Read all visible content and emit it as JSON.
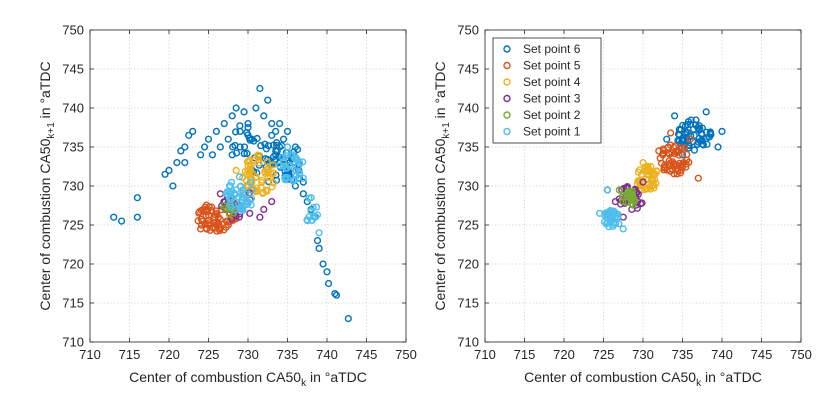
{
  "chart_data": [
    {
      "type": "scatter",
      "title": "",
      "xlabel": "Center of combustion CA50",
      "xlabel_sub": "k",
      "xlabel_suffix": " in °aTDC",
      "ylabel": "Center of combustion CA50",
      "ylabel_sub": "k+1",
      "ylabel_suffix": " in °aTDC",
      "xlim": [
        710,
        750
      ],
      "ylim": [
        710,
        750
      ],
      "xticks": [
        710,
        715,
        720,
        725,
        730,
        735,
        740,
        745,
        750
      ],
      "yticks": [
        710,
        715,
        720,
        725,
        730,
        735,
        740,
        745,
        750
      ],
      "grid": true,
      "legend": false,
      "series": [
        {
          "name": "Set point 6",
          "color": "#0072BD",
          "points": [
            [
              713,
              726
            ],
            [
              714,
              725.5
            ],
            [
              716,
              728.5
            ],
            [
              716,
              726
            ],
            [
              719.5,
              731.5
            ],
            [
              720,
              732
            ],
            [
              721,
              733
            ],
            [
              721.5,
              734.5
            ],
            [
              722,
              735
            ],
            [
              722.5,
              736.5
            ],
            [
              723,
              737
            ],
            [
              724,
              734
            ],
            [
              724.5,
              735
            ],
            [
              725,
              736
            ],
            [
              725.5,
              734
            ],
            [
              726,
              737
            ],
            [
              726.5,
              735
            ],
            [
              727,
              738
            ],
            [
              727.5,
              736
            ],
            [
              728,
              739
            ],
            [
              728.5,
              740
            ],
            [
              729,
              737
            ],
            [
              729.5,
              739.5
            ],
            [
              730,
              738
            ],
            [
              730.5,
              736
            ],
            [
              731,
              740
            ],
            [
              731.5,
              742.5
            ],
            [
              732,
              739
            ],
            [
              732.5,
              741
            ],
            [
              733,
              738
            ],
            [
              733.5,
              737
            ],
            [
              734,
              738
            ],
            [
              734.5,
              736
            ],
            [
              735,
              735
            ],
            [
              735.5,
              734
            ],
            [
              736,
              733
            ],
            [
              736.5,
              731
            ],
            [
              737,
              729
            ],
            [
              737.5,
              728
            ],
            [
              738,
              727
            ],
            [
              738.5,
              726
            ],
            [
              738.8,
              723
            ],
            [
              739,
              722
            ],
            [
              739.5,
              720
            ],
            [
              740,
              719
            ],
            [
              740.2,
              717.5
            ],
            [
              741,
              716.2
            ],
            [
              741.2,
              716
            ],
            [
              742.7,
              713
            ],
            [
              720.5,
              730
            ],
            [
              722,
              733
            ],
            [
              733,
              736.5
            ],
            [
              734,
              735
            ],
            [
              735,
              737
            ],
            [
              736,
              735
            ],
            [
              734,
              733
            ],
            [
              735,
              732
            ],
            [
              736,
              730
            ],
            [
              737,
              730.5
            ],
            [
              733.5,
              734
            ],
            [
              729,
              735
            ],
            [
              728,
              734
            ],
            [
              730,
              737.5
            ]
          ],
          "clusters": [
            [
              733.5,
              733,
              3.5,
              2.8,
              50
            ],
            [
              729,
              736,
              2.5,
              2,
              15
            ]
          ]
        },
        {
          "name": "Set point 5",
          "color": "#D95319",
          "points": [
            [
              724,
              724.5
            ],
            [
              724.2,
              725.5
            ],
            [
              728.5,
              727
            ],
            [
              728,
              726
            ],
            [
              729,
              727.5
            ]
          ],
          "clusters": [
            [
              726,
              726,
              2.5,
              1.8,
              55
            ]
          ]
        },
        {
          "name": "Set point 4",
          "color": "#EDB120",
          "points": [
            [
              728.5,
              732
            ],
            [
              734.5,
              733
            ],
            [
              733,
              731.5
            ],
            [
              729.5,
              729
            ]
          ],
          "clusters": [
            [
              731.5,
              731.5,
              2.3,
              2.5,
              55
            ]
          ]
        },
        {
          "name": "Set point 3",
          "color": "#7E2F8E",
          "points": [
            [
              726.5,
              729
            ],
            [
              732,
              727
            ],
            [
              733,
              728
            ],
            [
              731.5,
              726
            ],
            [
              727.5,
              728
            ]
          ],
          "clusters": [
            [
              729,
              727.5,
              2.5,
              2,
              20
            ]
          ]
        },
        {
          "name": "Set point 2",
          "color": "#77AC30",
          "points": [
            [
              727,
              727.5
            ],
            [
              728,
              728.5
            ]
          ],
          "clusters": [
            [
              727.5,
              727,
              1.2,
              1,
              8
            ]
          ]
        },
        {
          "name": "Set point 1",
          "color": "#4DBEEE",
          "points": [
            [
              735,
              735
            ],
            [
              736,
              733.5
            ],
            [
              737,
              731
            ],
            [
              738,
              728.5
            ],
            [
              739,
              724
            ]
          ],
          "clusters": [
            [
              729,
              729,
              1.8,
              2.3,
              45
            ],
            [
              735.5,
              732.5,
              1.6,
              2,
              30
            ],
            [
              738,
              727,
              0.9,
              1.8,
              12
            ]
          ]
        }
      ]
    },
    {
      "type": "scatter",
      "title": "",
      "xlabel": "Center of combustion CA50",
      "xlabel_sub": "k",
      "xlabel_suffix": " in °aTDC",
      "ylabel": "Center of combustion CA50",
      "ylabel_sub": "k+1",
      "ylabel_suffix": " in °aTDC",
      "xlim": [
        710,
        750
      ],
      "ylim": [
        710,
        750
      ],
      "xticks": [
        710,
        715,
        720,
        725,
        730,
        735,
        740,
        745,
        750
      ],
      "yticks": [
        710,
        715,
        720,
        725,
        730,
        735,
        740,
        745,
        750
      ],
      "grid": true,
      "legend": true,
      "legend_position": "top-left",
      "series": [
        {
          "name": "Set point 6",
          "color": "#0072BD",
          "points": [
            [
              734,
              739
            ],
            [
              738,
              739.5
            ],
            [
              740,
              737
            ],
            [
              739.5,
              735
            ],
            [
              733,
              736
            ],
            [
              735,
              734
            ]
          ],
          "clusters": [
            [
              736.5,
              736.5,
              2.2,
              2,
              60
            ]
          ]
        },
        {
          "name": "Set point 5",
          "color": "#D95319",
          "points": [
            [
              732,
              734.5
            ],
            [
              736,
              736
            ],
            [
              737,
              731
            ],
            [
              733.5,
              736.8
            ]
          ],
          "clusters": [
            [
              734,
              733.5,
              2,
              2,
              55
            ]
          ]
        },
        {
          "name": "Set point 4",
          "color": "#EDB120",
          "points": [
            [
              731,
              732.5
            ],
            [
              729,
              729.5
            ],
            [
              730,
              733
            ]
          ],
          "clusters": [
            [
              730.5,
              731,
              1.6,
              1.6,
              45
            ]
          ]
        },
        {
          "name": "Set point 3",
          "color": "#7E2F8E",
          "points": [
            [
              726.5,
              728
            ],
            [
              730,
              730.5
            ],
            [
              725.5,
              729.5
            ],
            [
              727.5,
              726
            ]
          ],
          "clusters": [
            [
              728.5,
              728.5,
              1.6,
              1.6,
              35
            ]
          ]
        },
        {
          "name": "Set point 2",
          "color": "#77AC30",
          "points": [
            [
              727,
              729.5
            ]
          ],
          "clusters": [
            [
              728.3,
              728.4,
              1,
              1,
              25
            ]
          ]
        },
        {
          "name": "Set point 1",
          "color": "#4DBEEE",
          "points": [
            [
              724.5,
              726.5
            ],
            [
              727.5,
              724.5
            ],
            [
              725.5,
              729.5
            ]
          ],
          "clusters": [
            [
              726,
              725.8,
              1.2,
              1.1,
              40
            ]
          ]
        }
      ]
    }
  ]
}
